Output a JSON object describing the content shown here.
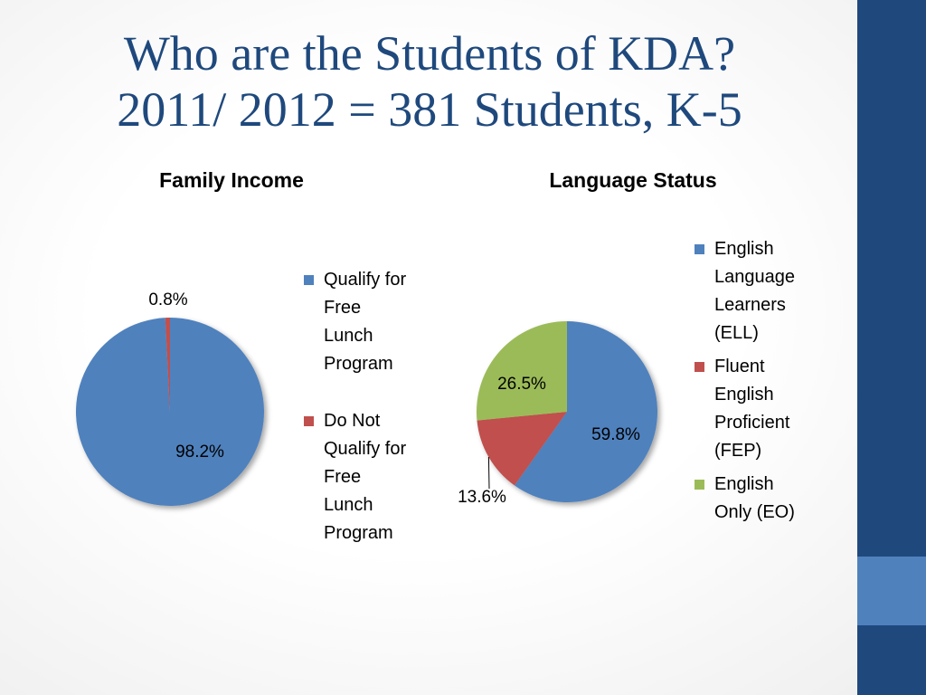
{
  "slide": {
    "title_line1": "Who are the Students of KDA?",
    "title_line2": "2011/ 2012 = 381 Students, K-5"
  },
  "colors": {
    "title": "#1f497d",
    "sidebar": "#1f497d",
    "sidebar_accent": "#4f81bd",
    "series_blue": "#4f81bd",
    "series_red": "#c0504d",
    "series_green": "#9bbb59"
  },
  "chart_data": [
    {
      "type": "pie",
      "title": "Family Income",
      "legend_position": "right",
      "slices": [
        {
          "name": "Qualify for Free Lunch Program",
          "label": "98.2%",
          "value": 98.2,
          "color": "#4f81bd"
        },
        {
          "name": "Do Not Qualify for Free Lunch Program",
          "label": "0.8%",
          "value": 0.8,
          "color": "#c0504d"
        }
      ]
    },
    {
      "type": "pie",
      "title": "Language Status",
      "legend_position": "top-right",
      "slices": [
        {
          "name": "English Language Learners (ELL)",
          "label": "59.8%",
          "value": 59.8,
          "color": "#4f81bd"
        },
        {
          "name": "Fluent English Proficient (FEP)",
          "label": "13.6%",
          "value": 13.6,
          "color": "#c0504d"
        },
        {
          "name": "English Only (EO)",
          "label": "26.5%",
          "value": 26.5,
          "color": "#9bbb59"
        }
      ]
    }
  ]
}
